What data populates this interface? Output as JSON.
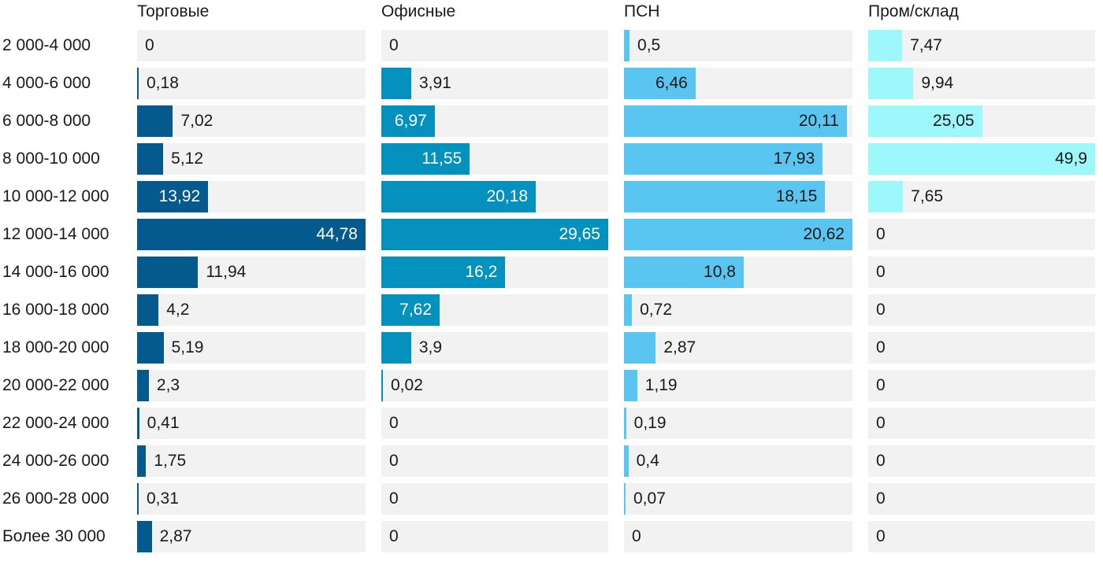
{
  "chart_data": {
    "type": "bar",
    "orientation": "horizontal",
    "layout": "small-multiples",
    "categories": [
      "2 000-4 000",
      "4 000-6 000",
      "6 000-8 000",
      "8 000-10 000",
      "10 000-12 000",
      "12 000-14 000",
      "14 000-16 000",
      "16 000-18 000",
      "18 000-20 000",
      "20 000-22 000",
      "22 000-24 000",
      "24 000-26 000",
      "26 000-28 000",
      "Более 30 000"
    ],
    "series": [
      {
        "name": "Торговые",
        "color": "#045a8d",
        "label_color": "#ffffff",
        "values": [
          0,
          0.18,
          7.02,
          5.12,
          13.92,
          44.78,
          11.94,
          4.2,
          5.19,
          2.3,
          0.41,
          1.75,
          0.31,
          2.87
        ],
        "labels": [
          "0",
          "0,18",
          "7,02",
          "5,12",
          "13,92",
          "44,78",
          "11,94",
          "4,2",
          "5,19",
          "2,3",
          "0,41",
          "1,75",
          "0,31",
          "2,87"
        ],
        "xlim": [
          0,
          44.78
        ]
      },
      {
        "name": "Офисные",
        "color": "#0591bd",
        "label_color": "#ffffff",
        "values": [
          0,
          3.91,
          6.97,
          11.55,
          20.18,
          29.65,
          16.2,
          7.62,
          3.9,
          0.02,
          0,
          0,
          0,
          0
        ],
        "labels": [
          "0",
          "3,91",
          "6,97",
          "11,55",
          "20,18",
          "29,65",
          "16,2",
          "7,62",
          "3,9",
          "0,02",
          "0",
          "0",
          "0",
          "0"
        ],
        "xlim": [
          0,
          29.65
        ]
      },
      {
        "name": "ПСН",
        "color": "#5bc5f2",
        "label_color": "#1a1a1a",
        "values": [
          0.5,
          6.46,
          20.11,
          17.93,
          18.15,
          20.62,
          10.8,
          0.72,
          2.87,
          1.19,
          0.19,
          0.4,
          0.07,
          0
        ],
        "labels": [
          "0,5",
          "6,46",
          "20,11",
          "17,93",
          "18,15",
          "20,62",
          "10,8",
          "0,72",
          "2,87",
          "1,19",
          "0,19",
          "0,4",
          "0,07",
          "0"
        ],
        "xlim": [
          0,
          20.62
        ]
      },
      {
        "name": "Пром/склад",
        "color": "#9ef8fb",
        "label_color": "#1a1a1a",
        "values": [
          7.47,
          9.94,
          25.05,
          49.9,
          7.65,
          0,
          0,
          0,
          0,
          0,
          0,
          0,
          0,
          0
        ],
        "labels": [
          "7,47",
          "9,94",
          "25,05",
          "49,9",
          "7,65",
          "0",
          "0",
          "0",
          "0",
          "0",
          "0",
          "0",
          "0",
          "0"
        ],
        "xlim": [
          0,
          49.9
        ]
      }
    ],
    "title": "",
    "xlabel": "",
    "ylabel": "",
    "grid": false,
    "legend": "none"
  }
}
